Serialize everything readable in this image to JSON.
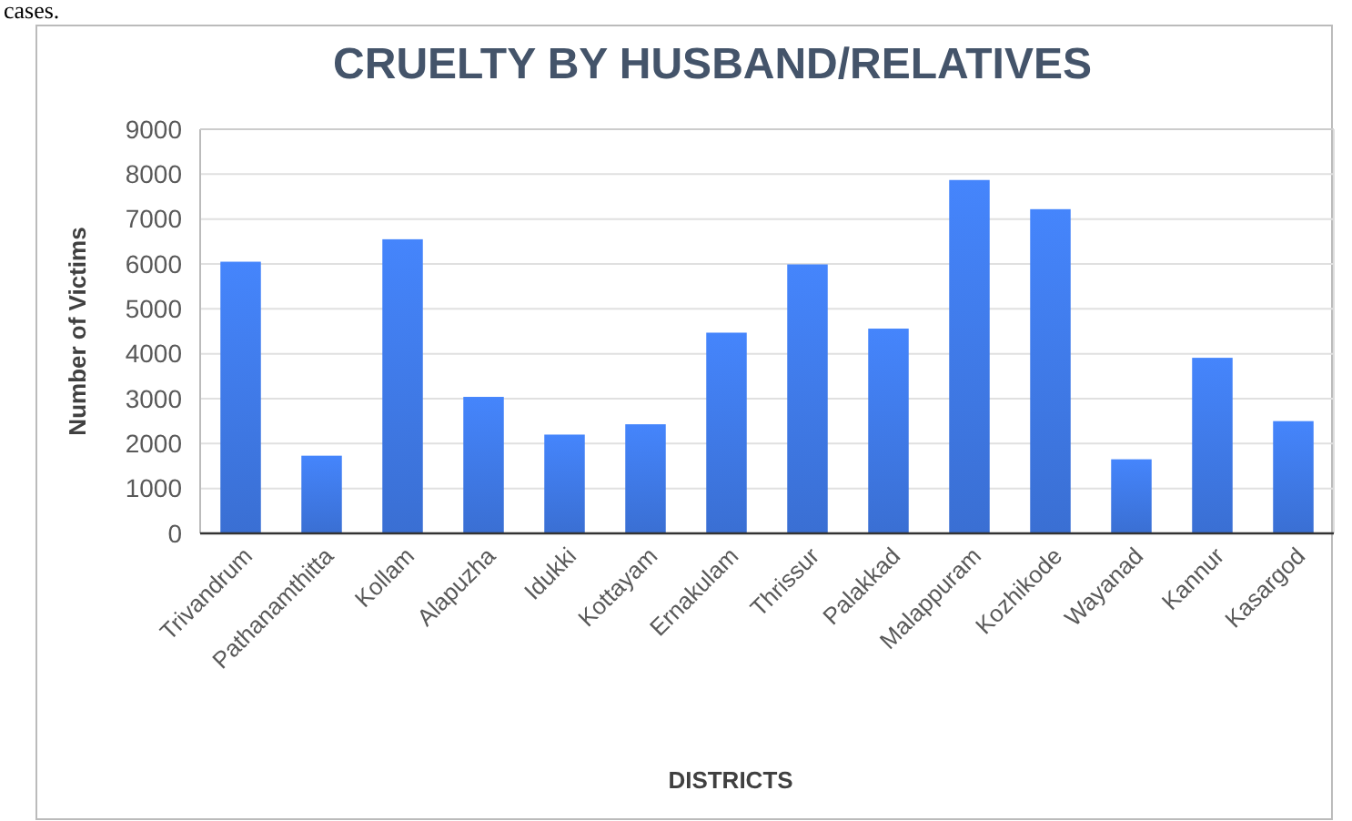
{
  "chart_data": {
    "type": "bar",
    "title": "CRUELTY BY HUSBAND/RELATIVES",
    "xlabel": "DISTRICTS",
    "ylabel": "Number of Victims",
    "annotations": [
      "cases."
    ],
    "categories": [
      "Trivandrum",
      "Pathanamthitta",
      "Kollam",
      "Alapuzha",
      "Idukki",
      "Kottayam",
      "Ernakulam",
      "Thrissur",
      "Palakkad",
      "Malappuram",
      "Kozhikode",
      "Wayanad",
      "Kannur",
      "Kasargod"
    ],
    "values": [
      6050,
      1730,
      6550,
      3040,
      2200,
      2430,
      4470,
      5990,
      4560,
      7870,
      7220,
      1650,
      3910,
      2500
    ],
    "color": "#3a6fd3",
    "ylim": [
      0,
      9000
    ],
    "yticks": [
      0,
      1000,
      2000,
      3000,
      4000,
      5000,
      6000,
      7000,
      8000,
      9000
    ],
    "grid": "y"
  }
}
